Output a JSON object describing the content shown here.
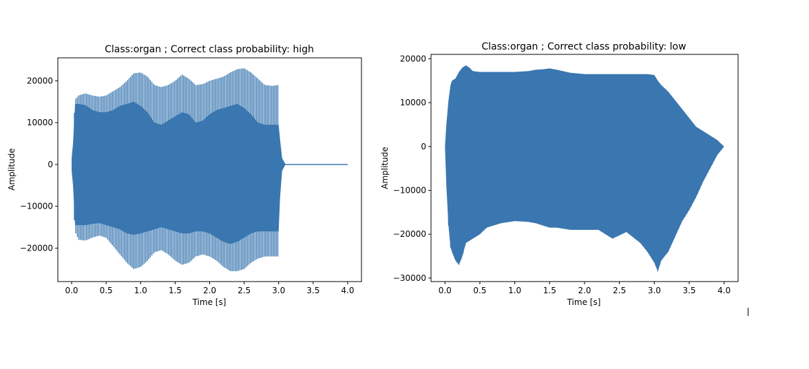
{
  "colors": {
    "series": "#3a77b0",
    "axis": "#000000",
    "background": "#ffffff"
  },
  "chart_data": [
    {
      "type": "line",
      "title": "Class:organ ; Correct class probability: high",
      "xlabel": "Time [s]",
      "ylabel": "Amplitude",
      "xlim": [
        -0.2,
        4.2
      ],
      "ylim": [
        -28000,
        25500
      ],
      "x_ticks": [
        0.0,
        0.5,
        1.0,
        1.5,
        2.0,
        2.5,
        3.0,
        3.5,
        4.0
      ],
      "x_tick_labels": [
        "0.0",
        "0.5",
        "1.0",
        "1.5",
        "2.0",
        "2.5",
        "3.0",
        "3.5",
        "4.0"
      ],
      "y_ticks": [
        -20000,
        -10000,
        0,
        10000,
        20000
      ],
      "y_tick_labels": [
        "−20000",
        "−10000",
        "0",
        "10000",
        "20000"
      ],
      "grid": false,
      "series": [
        {
          "values_note": "",
          "envelope": {
            "time": [
              0.0,
              0.02,
              0.05,
              0.1,
              0.2,
              0.3,
              0.4,
              0.5,
              0.6,
              0.7,
              0.8,
              0.9,
              1.0,
              1.1,
              1.2,
              1.3,
              1.4,
              1.5,
              1.6,
              1.7,
              1.8,
              1.9,
              2.0,
              2.1,
              2.2,
              2.3,
              2.4,
              2.5,
              2.6,
              2.7,
              2.8,
              2.9,
              3.0,
              3.02,
              3.05,
              3.1,
              4.0
            ],
            "upper": [
              2000,
              6000,
              15500,
              16500,
              17000,
              16500,
              16200,
              16500,
              17500,
              18500,
              20000,
              21800,
              22000,
              21000,
              19000,
              18500,
              19000,
              20000,
              21500,
              20500,
              19000,
              19200,
              20000,
              20500,
              21000,
              22000,
              22800,
              23000,
              22000,
              20500,
              19000,
              18800,
              19000,
              8000,
              2000,
              0,
              0
            ],
            "lower": [
              -2000,
              -8000,
              -16000,
              -18000,
              -18200,
              -17500,
              -17000,
              -17500,
              -19500,
              -21500,
              -23500,
              -25000,
              -24500,
              -23000,
              -21000,
              -20500,
              -21500,
              -23000,
              -24000,
              -23500,
              -22000,
              -21500,
              -22000,
              -23000,
              -24500,
              -25500,
              -25500,
              -25000,
              -23500,
              -22500,
              -22000,
              -22000,
              -22000,
              -9000,
              -2000,
              0,
              0
            ],
            "inner_upper": [
              1500,
              5000,
              14500,
              14500,
              14200,
              13000,
              12500,
              12500,
              13000,
              14000,
              14500,
              15000,
              14000,
              12500,
              10000,
              9500,
              10500,
              11500,
              12500,
              12000,
              10000,
              10500,
              12000,
              13000,
              13500,
              14000,
              14500,
              13500,
              12000,
              10000,
              9500,
              9500,
              9500,
              6000,
              1500,
              0,
              0
            ],
            "inner_lower": [
              -1500,
              -5000,
              -14500,
              -14500,
              -14500,
              -14200,
              -14000,
              -14500,
              -15000,
              -15500,
              -16500,
              -16800,
              -16500,
              -16000,
              -15500,
              -15000,
              -15500,
              -16000,
              -16500,
              -16500,
              -16000,
              -16000,
              -16500,
              -17500,
              -18500,
              -19000,
              -18500,
              -17500,
              -16500,
              -16000,
              -16000,
              -16000,
              -16000,
              -8000,
              -1500,
              0,
              0
            ]
          }
        }
      ]
    },
    {
      "type": "line",
      "title": "Class:organ ; Correct class probability: low",
      "xlabel": "Time [s]",
      "ylabel": "Amplitude",
      "xlim": [
        -0.2,
        4.2
      ],
      "ylim": [
        -30800,
        21000
      ],
      "x_ticks": [
        0.0,
        0.5,
        1.0,
        1.5,
        2.0,
        2.5,
        3.0,
        3.5,
        4.0
      ],
      "x_tick_labels": [
        "0.0",
        "0.5",
        "1.0",
        "1.5",
        "2.0",
        "2.5",
        "3.0",
        "3.5",
        "4.0"
      ],
      "y_ticks": [
        -30000,
        -20000,
        -10000,
        0,
        10000,
        20000
      ],
      "y_tick_labels": [
        "−30000",
        "−20000",
        "−10000",
        "0",
        "10000",
        "20000"
      ],
      "grid": false,
      "series": [
        {
          "envelope": {
            "time": [
              0.0,
              0.02,
              0.05,
              0.08,
              0.1,
              0.15,
              0.2,
              0.25,
              0.3,
              0.35,
              0.4,
              0.5,
              0.6,
              0.8,
              1.0,
              1.2,
              1.3,
              1.4,
              1.5,
              1.6,
              1.8,
              2.0,
              2.2,
              2.4,
              2.6,
              2.8,
              2.9,
              3.0,
              3.05,
              3.1,
              3.2,
              3.3,
              3.4,
              3.5,
              3.6,
              3.7,
              3.8,
              3.9,
              4.0
            ],
            "upper": [
              0,
              5000,
              10500,
              14000,
              15000,
              15500,
              17000,
              18000,
              18500,
              18000,
              17200,
              17000,
              17000,
              17000,
              17000,
              17200,
              17500,
              17600,
              17800,
              17500,
              16800,
              16500,
              16500,
              16500,
              16500,
              16500,
              16500,
              16300,
              15000,
              14000,
              12500,
              10500,
              8500,
              6500,
              4500,
              3500,
              2500,
              1500,
              0
            ],
            "lower": [
              0,
              -9000,
              -18000,
              -23000,
              -24000,
              -26000,
              -27000,
              -25000,
              -22000,
              -21500,
              -21000,
              -20000,
              -18500,
              -17500,
              -17000,
              -17200,
              -17500,
              -18000,
              -18500,
              -18500,
              -19000,
              -19000,
              -19000,
              -21000,
              -19500,
              -22000,
              -24000,
              -26500,
              -28500,
              -26000,
              -24000,
              -20500,
              -17000,
              -14500,
              -11500,
              -8000,
              -5000,
              -2000,
              0
            ]
          }
        }
      ]
    }
  ]
}
